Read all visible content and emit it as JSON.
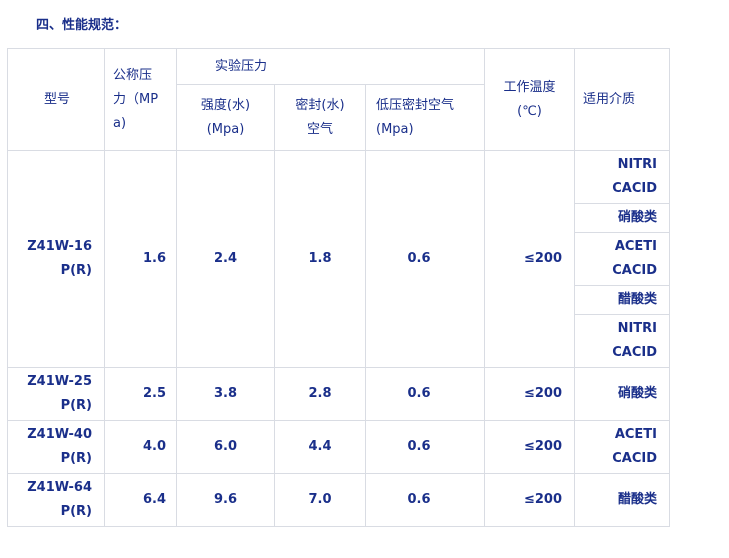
{
  "heading": "四、性能规范：",
  "header": {
    "model": "型号",
    "nominal_pressure": "公称压力（MPa)",
    "test_pressure": "实验压力",
    "strength": "强度(水)(Mpa)",
    "seal": "密封(水)空气",
    "low_pressure_seal": "低压密封空气(Mpa)",
    "working_temp": "工作温度(℃)",
    "medium": "适用介质"
  },
  "rows": [
    {
      "model": "Z41W-16P(R)",
      "pressure": "1.6",
      "strength": "2.4",
      "seal": "1.8",
      "low": "0.6",
      "temp": "≤200",
      "media": [
        "NITRI CACID",
        "硝酸类",
        "ACETI CACID",
        "醋酸类",
        "NITRI CACID"
      ]
    },
    {
      "model": "Z41W-25P(R)",
      "pressure": "2.5",
      "strength": "3.8",
      "seal": "2.8",
      "low": "0.6",
      "temp": "≤200",
      "media": [
        "硝酸类"
      ]
    },
    {
      "model": "Z41W-40P(R)",
      "pressure": "4.0",
      "strength": "6.0",
      "seal": "4.4",
      "low": "0.6",
      "temp": "≤200",
      "media": [
        "ACETI CACID"
      ]
    },
    {
      "model": "Z41W-64P(R)",
      "pressure": "6.4",
      "strength": "9.6",
      "seal": "7.0",
      "low": "0.6",
      "temp": "≤200",
      "media": [
        "醋酸类"
      ]
    }
  ]
}
